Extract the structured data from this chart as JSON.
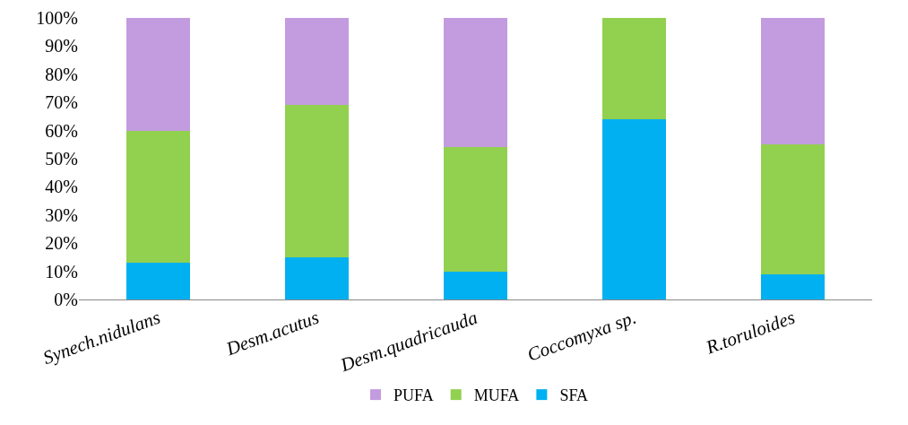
{
  "chart_data": {
    "type": "bar",
    "stacked": true,
    "categories": [
      "Synech.nidulans",
      "Desm.acutus",
      "Desm.quadricauda",
      "Coccomyxa sp.",
      "R.toruloides"
    ],
    "series": [
      {
        "name": "SFA",
        "color": "#00b0f0",
        "values": [
          13,
          15,
          10,
          64,
          9
        ]
      },
      {
        "name": "MUFA",
        "color": "#92d050",
        "values": [
          47,
          54,
          44,
          36,
          46
        ]
      },
      {
        "name": "PUFA",
        "color": "#c39bdf",
        "values": [
          40,
          31,
          46,
          0,
          45
        ]
      }
    ],
    "ylim": [
      0,
      100
    ],
    "yticks": [
      {
        "value": 0,
        "label": "0%"
      },
      {
        "value": 10,
        "label": "10%"
      },
      {
        "value": 20,
        "label": "20%"
      },
      {
        "value": 30,
        "label": "30%"
      },
      {
        "value": 40,
        "label": "40%"
      },
      {
        "value": 50,
        "label": "50%"
      },
      {
        "value": 60,
        "label": "60%"
      },
      {
        "value": 70,
        "label": "70%"
      },
      {
        "value": 80,
        "label": "80%"
      },
      {
        "value": 90,
        "label": "90%"
      },
      {
        "value": 100,
        "label": "100%"
      }
    ],
    "grid": false,
    "legend": "bottom"
  }
}
